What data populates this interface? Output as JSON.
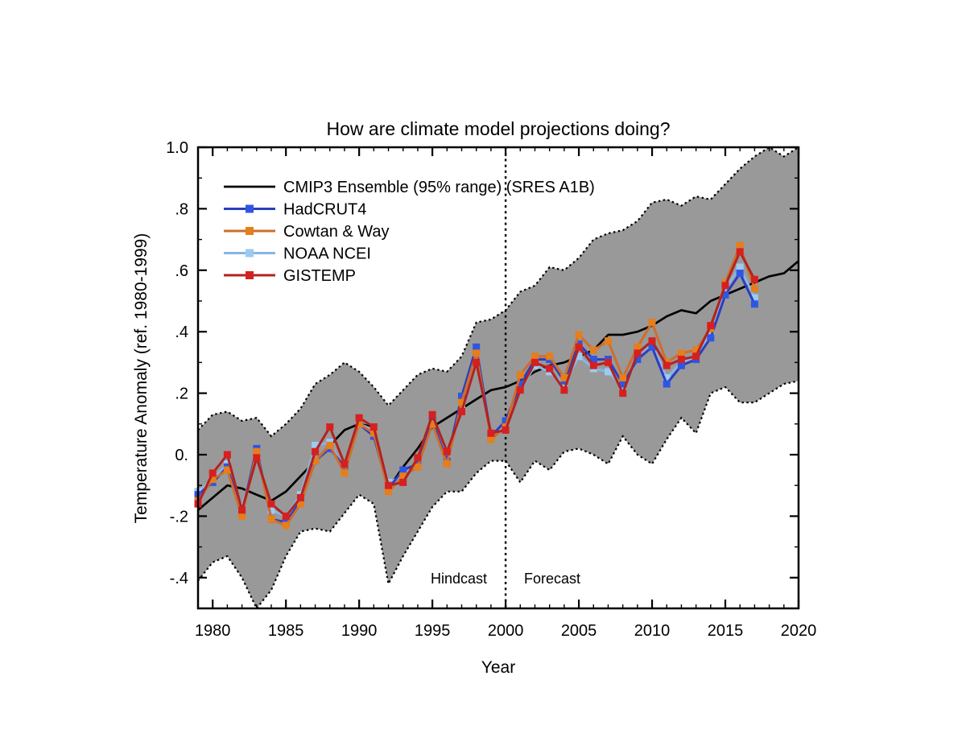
{
  "chart_data": {
    "type": "line",
    "title": "How are climate model projections doing?",
    "xlabel": "Year",
    "ylabel": "Temperature Anomaly (ref. 1980-1999)",
    "xlim": [
      1979,
      2020
    ],
    "ylim": [
      -0.5,
      1.0
    ],
    "x_ticks": [
      1980,
      1985,
      1990,
      1995,
      2000,
      2005,
      2010,
      2015,
      2020
    ],
    "y_ticks": [
      {
        "value": 1.0,
        "label": "1.0"
      },
      {
        "value": 0.8,
        "label": ".8"
      },
      {
        "value": 0.6,
        "label": ".6"
      },
      {
        "value": 0.4,
        "label": ".4"
      },
      {
        "value": 0.2,
        "label": ".2"
      },
      {
        "value": 0.0,
        "label": "0."
      },
      {
        "value": -0.2,
        "label": "-.2"
      },
      {
        "value": -0.4,
        "label": "-.4"
      }
    ],
    "grid": false,
    "legend_position": "upper-left-inside",
    "divider_year": 2000,
    "annotations": {
      "hindcast": "Hindcast",
      "forecast": "Forecast"
    },
    "colors": {
      "band_fill": "#999999",
      "band_edge": "#000000",
      "ensemble_mean": "#000000",
      "hadcrut4_line": "#2a3ec0",
      "hadcrut4_marker": "#2f55e2",
      "cowtan_way_line": "#cf6d2b",
      "cowtan_way_marker": "#e67e1a",
      "noaa_ncei_line": "#8ab5e3",
      "noaa_ncei_marker": "#9ccaf2",
      "gistemp_line": "#b22222",
      "gistemp_marker": "#d62020"
    },
    "years_model": [
      1979,
      1980,
      1981,
      1982,
      1983,
      1984,
      1985,
      1986,
      1987,
      1988,
      1989,
      1990,
      1991,
      1992,
      1993,
      1994,
      1995,
      1996,
      1997,
      1998,
      1999,
      2000,
      2001,
      2002,
      2003,
      2004,
      2005,
      2006,
      2007,
      2008,
      2009,
      2010,
      2011,
      2012,
      2013,
      2014,
      2015,
      2016,
      2017,
      2018,
      2019,
      2020
    ],
    "band": {
      "name": "CMIP3 Ensemble 95% range",
      "upper": [
        0.08,
        0.13,
        0.14,
        0.11,
        0.12,
        0.06,
        0.1,
        0.15,
        0.23,
        0.26,
        0.3,
        0.27,
        0.22,
        0.16,
        0.21,
        0.26,
        0.28,
        0.27,
        0.32,
        0.43,
        0.44,
        0.47,
        0.53,
        0.55,
        0.61,
        0.6,
        0.64,
        0.7,
        0.72,
        0.73,
        0.76,
        0.82,
        0.83,
        0.81,
        0.84,
        0.83,
        0.88,
        0.93,
        0.97,
        1.0,
        0.97,
        1.0
      ],
      "lower": [
        -0.41,
        -0.35,
        -0.33,
        -0.4,
        -0.5,
        -0.44,
        -0.33,
        -0.25,
        -0.24,
        -0.25,
        -0.19,
        -0.13,
        -0.16,
        -0.42,
        -0.33,
        -0.25,
        -0.17,
        -0.12,
        -0.12,
        -0.06,
        -0.02,
        -0.02,
        -0.09,
        -0.02,
        -0.05,
        0.01,
        0.02,
        0.0,
        -0.03,
        0.06,
        0.0,
        -0.03,
        0.05,
        0.12,
        0.07,
        0.2,
        0.22,
        0.17,
        0.17,
        0.2,
        0.23,
        0.24
      ]
    },
    "ensemble_mean": {
      "name": "CMIP3 Ensemble mean",
      "values": [
        -0.18,
        -0.14,
        -0.1,
        -0.11,
        -0.13,
        -0.15,
        -0.12,
        -0.07,
        -0.02,
        0.03,
        0.08,
        0.1,
        0.09,
        -0.11,
        -0.04,
        0.02,
        0.09,
        0.12,
        0.15,
        0.18,
        0.21,
        0.22,
        0.24,
        0.27,
        0.29,
        0.3,
        0.32,
        0.34,
        0.39,
        0.39,
        0.4,
        0.42,
        0.45,
        0.47,
        0.46,
        0.5,
        0.52,
        0.54,
        0.56,
        0.58,
        0.59,
        0.63
      ]
    },
    "years_obs": [
      1979,
      1980,
      1981,
      1982,
      1983,
      1984,
      1985,
      1986,
      1987,
      1988,
      1989,
      1990,
      1991,
      1992,
      1993,
      1994,
      1995,
      1996,
      1997,
      1998,
      1999,
      2000,
      2001,
      2002,
      2003,
      2004,
      2005,
      2006,
      2007,
      2008,
      2009,
      2010,
      2011,
      2012,
      2013,
      2014,
      2015,
      2016,
      2017
    ],
    "series": [
      {
        "name": "NOAA NCEI",
        "values": [
          -0.12,
          -0.08,
          -0.03,
          -0.17,
          0.0,
          -0.18,
          -0.2,
          -0.13,
          0.03,
          0.04,
          -0.05,
          0.1,
          0.08,
          -0.09,
          -0.07,
          -0.03,
          0.1,
          -0.01,
          0.16,
          0.31,
          0.06,
          0.09,
          0.21,
          0.29,
          0.27,
          0.23,
          0.32,
          0.28,
          0.27,
          0.22,
          0.31,
          0.36,
          0.25,
          0.3,
          0.32,
          0.4,
          0.54,
          0.61,
          0.51
        ]
      },
      {
        "name": "HadCRUT4",
        "values": [
          -0.13,
          -0.09,
          -0.04,
          -0.19,
          0.02,
          -0.21,
          -0.22,
          -0.15,
          -0.02,
          0.02,
          -0.04,
          0.1,
          0.06,
          -0.11,
          -0.05,
          -0.03,
          0.11,
          -0.02,
          0.19,
          0.35,
          0.06,
          0.11,
          0.23,
          0.31,
          0.31,
          0.24,
          0.36,
          0.31,
          0.31,
          0.23,
          0.31,
          0.35,
          0.23,
          0.29,
          0.31,
          0.38,
          0.52,
          0.59,
          0.49
        ]
      },
      {
        "name": "Cowtan & Way",
        "values": [
          -0.15,
          -0.08,
          -0.05,
          -0.2,
          0.01,
          -0.21,
          -0.23,
          -0.16,
          -0.02,
          0.03,
          -0.06,
          0.1,
          0.07,
          -0.12,
          -0.07,
          -0.04,
          0.1,
          -0.03,
          0.17,
          0.33,
          0.05,
          0.09,
          0.26,
          0.32,
          0.32,
          0.25,
          0.39,
          0.34,
          0.37,
          0.25,
          0.35,
          0.43,
          0.3,
          0.33,
          0.34,
          0.41,
          0.56,
          0.68,
          0.54
        ]
      },
      {
        "name": "GISTEMP",
        "values": [
          -0.16,
          -0.06,
          0.0,
          -0.18,
          -0.01,
          -0.16,
          -0.2,
          -0.14,
          0.01,
          0.09,
          -0.03,
          0.12,
          0.09,
          -0.1,
          -0.09,
          -0.01,
          0.13,
          0.01,
          0.14,
          0.3,
          0.07,
          0.08,
          0.21,
          0.3,
          0.28,
          0.21,
          0.35,
          0.29,
          0.3,
          0.2,
          0.33,
          0.37,
          0.29,
          0.31,
          0.32,
          0.42,
          0.55,
          0.66,
          0.57
        ]
      }
    ],
    "legend": [
      {
        "label": "CMIP3 Ensemble (95% range) (SRES A1B)",
        "line_color": "#000000",
        "marker": false,
        "marker_color": "#000000"
      },
      {
        "label": "HadCRUT4",
        "line_color": "#2a3ec0",
        "marker": true,
        "marker_color": "#2f55e2"
      },
      {
        "label": "Cowtan & Way",
        "line_color": "#cf6d2b",
        "marker": true,
        "marker_color": "#e67e1a"
      },
      {
        "label": "NOAA NCEI",
        "line_color": "#8ab5e3",
        "marker": true,
        "marker_color": "#9ccaf2"
      },
      {
        "label": "GISTEMP",
        "line_color": "#b22222",
        "marker": true,
        "marker_color": "#d62020"
      }
    ]
  }
}
